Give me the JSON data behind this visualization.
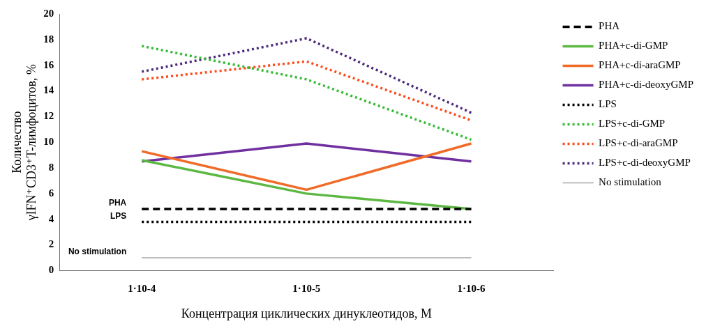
{
  "chart_data": {
    "type": "line",
    "xlabel": "Концентрация циклических динуклеотидов, М",
    "ylabel": "Количество γIFN⁺CD3⁺T-лимфоцитов, %",
    "categories": [
      "1·10-4",
      "1·10-5",
      "1·10-6"
    ],
    "ylim": [
      0,
      20
    ],
    "yticks": [
      0,
      2,
      4,
      6,
      8,
      10,
      12,
      14,
      16,
      18,
      20
    ],
    "grid": false,
    "legend": "right",
    "marker": "none",
    "series": [
      {
        "name": "PHA",
        "color": "#000000",
        "line_style": "dashed",
        "values": [
          4.8,
          4.8,
          4.8
        ]
      },
      {
        "name": "PHA+c-di-GMP",
        "color": "#5cb843",
        "line_style": "solid",
        "values": [
          8.6,
          6.0,
          4.8
        ]
      },
      {
        "name": "PHA+c-di-araGMP",
        "color": "#f06a28",
        "line_style": "solid",
        "values": [
          9.3,
          6.3,
          9.9
        ]
      },
      {
        "name": "PHA+c-di-deoxyGMP",
        "color": "#7030a0",
        "line_style": "solid",
        "values": [
          8.5,
          9.9,
          8.5
        ]
      },
      {
        "name": "LPS",
        "color": "#000000",
        "line_style": "dotted",
        "values": [
          3.8,
          3.8,
          3.8
        ]
      },
      {
        "name": "LPS+c-di-GMP",
        "color": "#33bb33",
        "line_style": "dotted",
        "values": [
          17.5,
          14.9,
          10.2
        ]
      },
      {
        "name": "LPS+c-di-araGMP",
        "color": "#ff4a1a",
        "line_style": "dotted",
        "values": [
          14.9,
          16.3,
          11.7
        ]
      },
      {
        "name": "LPS+c-di-deoxyGMP",
        "color": "#4b2a7a",
        "line_style": "dotted",
        "values": [
          15.5,
          18.1,
          12.3
        ]
      },
      {
        "name": "No stimulation",
        "color": "#a6a6a6",
        "line_style": "solid",
        "values": [
          1.0,
          1.0,
          1.0
        ]
      }
    ],
    "annotations": [
      {
        "text": "PHA",
        "x": "1·10-4",
        "y": 4.8
      },
      {
        "text": "LPS",
        "x": "1·10-4",
        "y": 3.8
      },
      {
        "text": "No stimulation",
        "x": "1·10-4",
        "y": 1.0
      }
    ]
  }
}
